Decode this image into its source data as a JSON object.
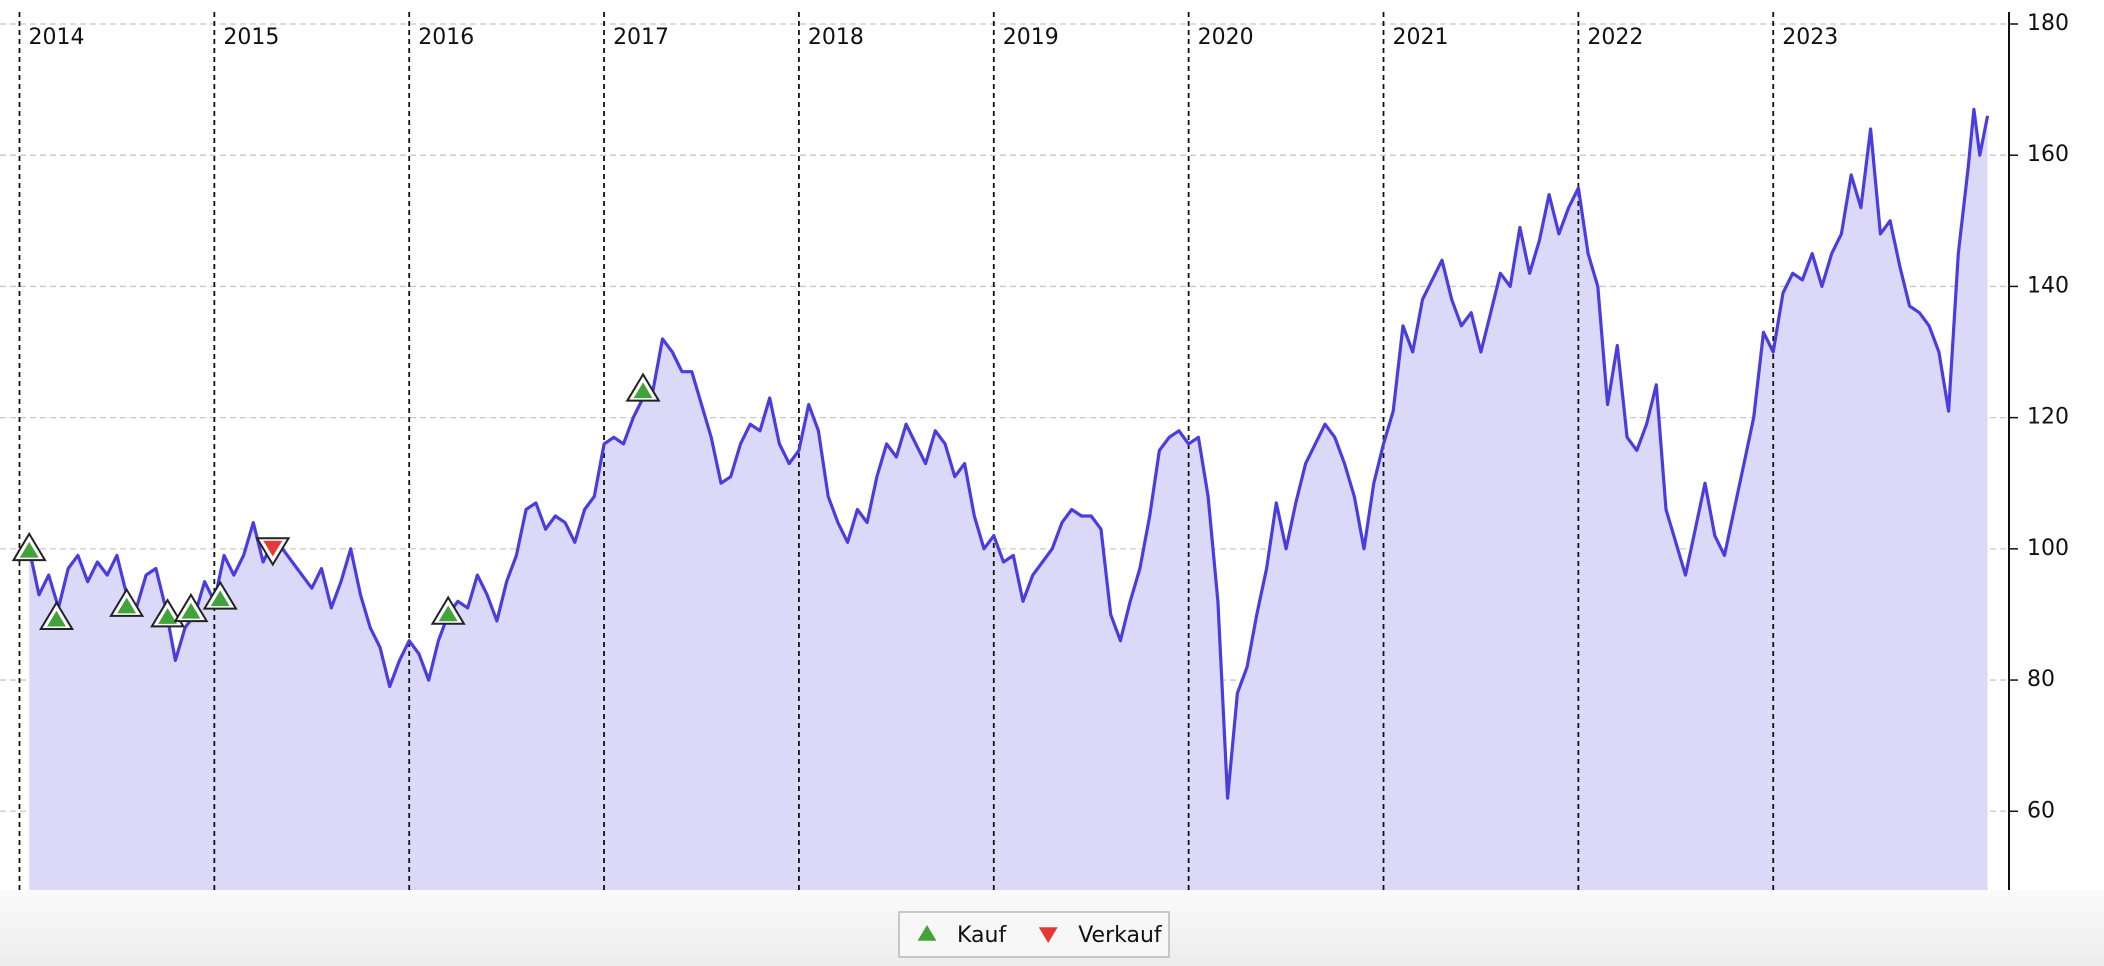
{
  "chart_data": {
    "type": "area",
    "color": "#4a3de0",
    "fill_color": "#dcd8f8",
    "x": [
      2014.05,
      2014.1,
      2014.15,
      2014.2,
      2014.25,
      2014.3,
      2014.35,
      2014.4,
      2014.45,
      2014.5,
      2014.55,
      2014.6,
      2014.65,
      2014.7,
      2014.75,
      2014.8,
      2014.85,
      2014.9,
      2014.95,
      2015.0,
      2015.05,
      2015.1,
      2015.15,
      2015.2,
      2015.25,
      2015.3,
      2015.35,
      2015.4,
      2015.45,
      2015.5,
      2015.55,
      2015.6,
      2015.65,
      2015.7,
      2015.75,
      2015.8,
      2015.85,
      2015.9,
      2015.95,
      2016.0,
      2016.05,
      2016.1,
      2016.15,
      2016.2,
      2016.25,
      2016.3,
      2016.35,
      2016.4,
      2016.45,
      2016.5,
      2016.55,
      2016.6,
      2016.65,
      2016.7,
      2016.75,
      2016.8,
      2016.85,
      2016.9,
      2016.95,
      2017.0,
      2017.05,
      2017.1,
      2017.15,
      2017.2,
      2017.25,
      2017.3,
      2017.35,
      2017.4,
      2017.45,
      2017.5,
      2017.55,
      2017.6,
      2017.65,
      2017.7,
      2017.75,
      2017.8,
      2017.85,
      2017.9,
      2017.95,
      2018.0,
      2018.05,
      2018.1,
      2018.15,
      2018.2,
      2018.25,
      2018.3,
      2018.35,
      2018.4,
      2018.45,
      2018.5,
      2018.55,
      2018.6,
      2018.65,
      2018.7,
      2018.75,
      2018.8,
      2018.85,
      2018.9,
      2018.95,
      2019.0,
      2019.05,
      2019.1,
      2019.15,
      2019.2,
      2019.25,
      2019.3,
      2019.35,
      2019.4,
      2019.45,
      2019.5,
      2019.55,
      2019.6,
      2019.65,
      2019.7,
      2019.75,
      2019.8,
      2019.85,
      2019.9,
      2019.95,
      2020.0,
      2020.05,
      2020.1,
      2020.15,
      2020.2,
      2020.25,
      2020.3,
      2020.35,
      2020.4,
      2020.45,
      2020.5,
      2020.55,
      2020.6,
      2020.65,
      2020.7,
      2020.75,
      2020.8,
      2020.85,
      2020.9,
      2020.95,
      2021.0,
      2021.05,
      2021.1,
      2021.15,
      2021.2,
      2021.25,
      2021.3,
      2021.35,
      2021.4,
      2021.45,
      2021.5,
      2021.55,
      2021.6,
      2021.65,
      2021.7,
      2021.75,
      2021.8,
      2021.85,
      2021.9,
      2021.95,
      2022.0,
      2022.05,
      2022.1,
      2022.15,
      2022.2,
      2022.25,
      2022.3,
      2022.35,
      2022.4,
      2022.45,
      2022.5,
      2022.55,
      2022.6,
      2022.65,
      2022.7,
      2022.75,
      2022.8,
      2022.85,
      2022.9,
      2022.95,
      2023.0,
      2023.05,
      2023.1,
      2023.15,
      2023.2,
      2023.25,
      2023.3,
      2023.35,
      2023.4,
      2023.45,
      2023.5,
      2023.55,
      2023.6,
      2023.65,
      2023.7,
      2023.75,
      2023.8,
      2023.85,
      2023.9,
      2023.95,
      2024.0,
      2024.03,
      2024.06,
      2024.1
    ],
    "values": [
      100,
      93,
      96,
      91,
      97,
      99,
      95,
      98,
      96,
      99,
      93,
      91,
      96,
      97,
      91,
      83,
      88,
      90,
      95,
      92,
      99,
      96,
      99,
      104,
      98,
      101,
      100,
      98,
      96,
      94,
      97,
      91,
      95,
      100,
      93,
      88,
      85,
      79,
      83,
      86,
      84,
      80,
      86,
      90,
      92,
      91,
      96,
      93,
      89,
      95,
      99,
      106,
      107,
      103,
      105,
      104,
      101,
      106,
      108,
      116,
      117,
      116,
      120,
      123,
      124,
      132,
      130,
      127,
      127,
      122,
      117,
      110,
      111,
      116,
      119,
      118,
      123,
      116,
      113,
      115,
      122,
      118,
      108,
      104,
      101,
      106,
      104,
      111,
      116,
      114,
      119,
      116,
      113,
      118,
      116,
      111,
      113,
      105,
      100,
      102,
      98,
      99,
      92,
      96,
      98,
      100,
      104,
      106,
      105,
      105,
      103,
      90,
      86,
      92,
      97,
      105,
      115,
      117,
      118,
      116,
      117,
      108,
      92,
      62,
      78,
      82,
      90,
      97,
      107,
      100,
      107,
      113,
      116,
      119,
      117,
      113,
      108,
      100,
      110,
      116,
      121,
      134,
      130,
      138,
      141,
      144,
      138,
      134,
      136,
      130,
      136,
      142,
      140,
      149,
      142,
      147,
      154,
      148,
      152,
      155,
      145,
      140,
      122,
      131,
      117,
      115,
      119,
      125,
      106,
      101,
      96,
      103,
      110,
      102,
      99,
      106,
      113,
      120,
      133,
      130,
      139,
      142,
      141,
      145,
      140,
      145,
      148,
      157,
      152,
      164,
      148,
      150,
      143,
      137,
      136,
      134,
      130,
      121,
      145,
      158,
      167,
      160,
      166
    ],
    "markers": [
      {
        "name": "Kauf",
        "color": "#43a33b",
        "symbol": "triangle-up",
        "x": [
          2014.05,
          2014.19,
          2014.55,
          2014.76,
          2014.88,
          2015.03,
          2016.2,
          2017.2
        ],
        "values": [
          100,
          89.5,
          91.5,
          89.9,
          90.7,
          92.6,
          90.3,
          124.3
        ]
      },
      {
        "name": "Verkauf",
        "color": "#e53935",
        "symbol": "triangle-down",
        "x": [
          2015.3
        ],
        "values": [
          99.9
        ]
      }
    ],
    "xlim": [
      2013.9,
      2024.21
    ],
    "xticks": [
      2014,
      2015,
      2016,
      2017,
      2018,
      2019,
      2020,
      2021,
      2022,
      2023
    ],
    "ylim": [
      48,
      180
    ],
    "yticks": [
      60,
      80,
      100,
      120,
      140,
      160,
      180
    ],
    "grid": true,
    "legend": "bottom"
  }
}
